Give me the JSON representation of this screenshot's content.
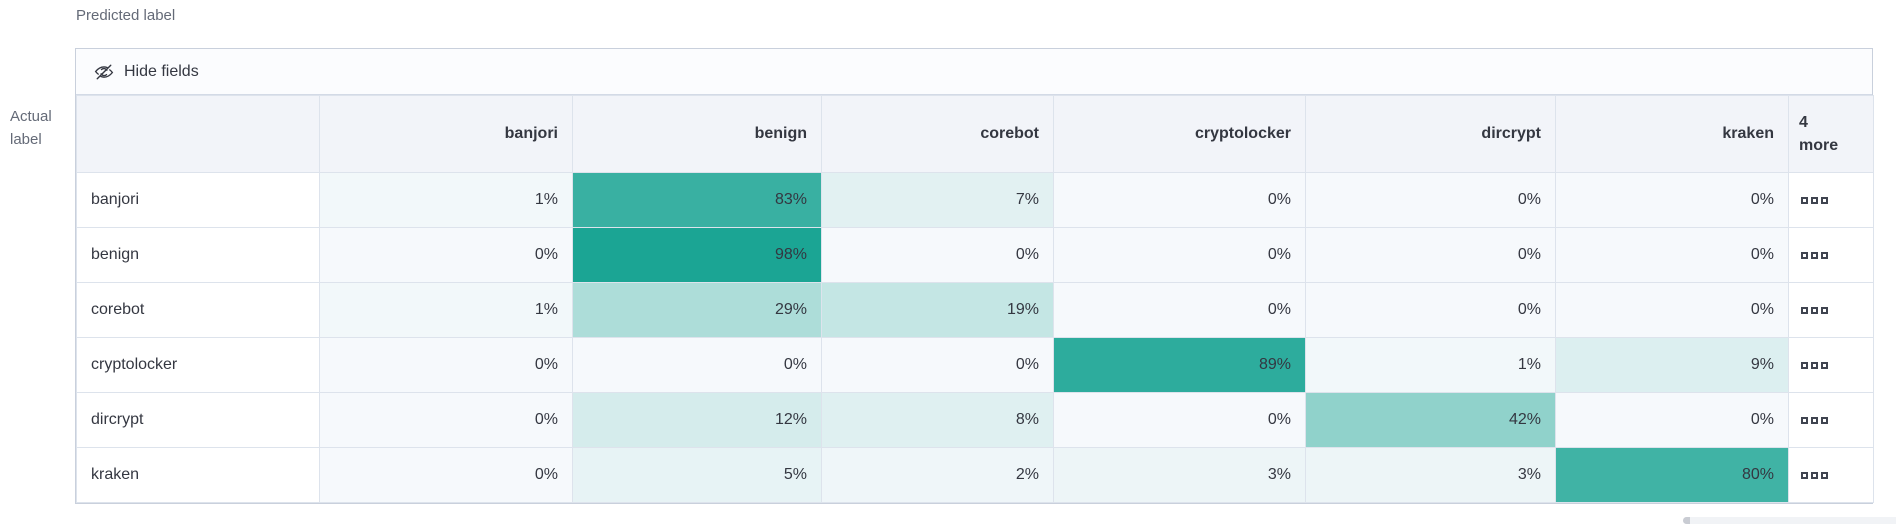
{
  "axis": {
    "predicted": "Predicted label",
    "actual": "Actual label"
  },
  "toolbar": {
    "hide_fields_label": "Hide fields"
  },
  "more_column_label": "4 more",
  "colors": {
    "heat_start": "#F6F9FC",
    "heat_end": "#17A392",
    "header_bg": "#F2F4F9",
    "toolbar_bg": "#FBFCFE",
    "border": "#DDE3EC",
    "text": "#343741",
    "muted_text": "#646A77"
  },
  "chart_data": {
    "type": "heatmap",
    "x_axis_label": "Predicted label",
    "y_axis_label": "Actual label",
    "x_categories": [
      "banjori",
      "benign",
      "corebot",
      "cryptolocker",
      "dircrypt",
      "kraken"
    ],
    "y_categories": [
      "banjori",
      "benign",
      "corebot",
      "cryptolocker",
      "dircrypt",
      "kraken"
    ],
    "hidden_columns_label": "4 more",
    "value_format": "percent",
    "values_percent": [
      [
        1,
        83,
        7,
        0,
        0,
        0
      ],
      [
        0,
        98,
        0,
        0,
        0,
        0
      ],
      [
        1,
        29,
        19,
        0,
        0,
        0
      ],
      [
        0,
        0,
        0,
        89,
        1,
        9
      ],
      [
        0,
        12,
        8,
        0,
        42,
        0
      ],
      [
        0,
        5,
        2,
        3,
        3,
        80
      ]
    ],
    "color_scale": {
      "start": "#F6F9FC",
      "end": "#17A392"
    },
    "legend": "none",
    "grid": "on"
  }
}
